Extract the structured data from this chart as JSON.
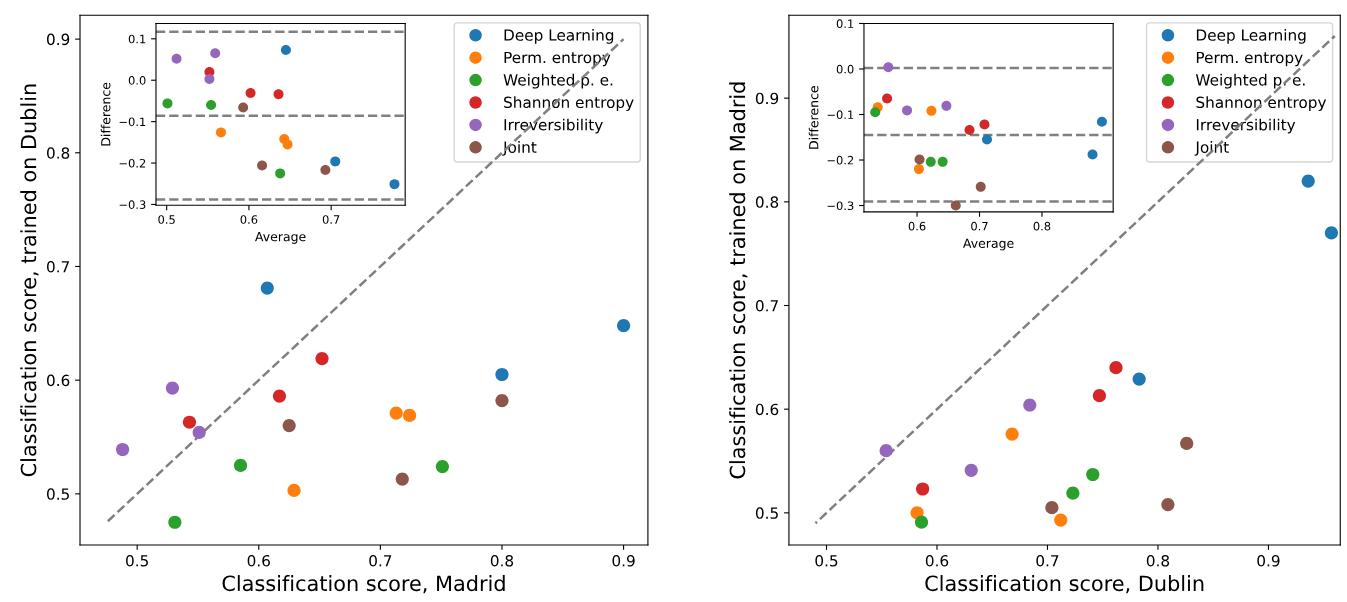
{
  "chart_data": [
    {
      "type": "scatter",
      "xlabel": "Classification score, Madrid",
      "ylabel": "Classification score, trained on Dublin",
      "xlim": [
        0.453,
        0.92
      ],
      "ylim": [
        0.455,
        0.921
      ],
      "xticks": [
        0.5,
        0.6,
        0.7,
        0.8,
        0.9
      ],
      "yticks": [
        0.5,
        0.6,
        0.7,
        0.8,
        0.9
      ],
      "grid": false,
      "legend": "top right",
      "marker": "circle",
      "series": [
        {
          "name": "Deep Learning",
          "color": "#1f77b4",
          "x": [
            0.607,
            0.8,
            0.9
          ],
          "values": [
            0.681,
            0.605,
            0.648
          ]
        },
        {
          "name": "Perm. entropy",
          "color": "#ff7f0e",
          "x": [
            0.713,
            0.724,
            0.629
          ],
          "values": [
            0.571,
            0.569,
            0.503
          ]
        },
        {
          "name": "Weighted p. e.",
          "color": "#2ca02c",
          "x": [
            0.585,
            0.751,
            0.531
          ],
          "values": [
            0.525,
            0.524,
            0.475
          ]
        },
        {
          "name": "Shannon entropy",
          "color": "#d62728",
          "x": [
            0.543,
            0.617,
            0.652
          ],
          "values": [
            0.563,
            0.586,
            0.619
          ]
        },
        {
          "name": "Irreversibility",
          "color": "#9467bd",
          "x": [
            0.529,
            0.488,
            0.551
          ],
          "values": [
            0.593,
            0.539,
            0.554
          ]
        },
        {
          "name": "Joint",
          "color": "#8c564b",
          "x": [
            0.625,
            0.8,
            0.718
          ],
          "values": [
            0.56,
            0.582,
            0.513
          ]
        },
        {
          "type": "line",
          "color": "#808080",
          "line_style": "dashed",
          "marker": "none",
          "x": [
            0.475,
            0.9
          ],
          "values": [
            0.475,
            0.9
          ]
        }
      ]
    },
    {
      "type": "scatter",
      "xlabel": "Average",
      "ylabel": "Difference",
      "xlim": [
        0.487,
        0.79
      ],
      "ylim": [
        -0.302,
        0.137
      ],
      "xticks": [
        0.5,
        0.6,
        0.7
      ],
      "yticks": [
        0.1,
        {
          "value": 0,
          "label": "0.0"
        },
        {
          "value": -0.1,
          "label": "−0.1"
        },
        {
          "value": -0.2,
          "label": "−0.2"
        },
        {
          "value": -0.3,
          "label": "−0.3"
        }
      ],
      "grid": false,
      "marker": "circle",
      "ref_lines": [
        {
          "axis": "y",
          "value": 0.117,
          "color": "#808080",
          "line_style": "dashed"
        },
        {
          "axis": "y",
          "value": -0.086,
          "color": "#808080",
          "line_style": "dashed"
        },
        {
          "axis": "y",
          "value": -0.288,
          "color": "#808080",
          "line_style": "dashed"
        }
      ],
      "series": [
        {
          "color": "#1f77b4",
          "x": [
            0.645,
            0.705,
            0.777
          ],
          "values": [
            0.073,
            -0.196,
            -0.251
          ]
        },
        {
          "color": "#ff7f0e",
          "x": [
            0.566,
            0.643,
            0.647
          ],
          "values": [
            -0.126,
            -0.142,
            -0.155
          ]
        },
        {
          "color": "#2ca02c",
          "x": [
            0.501,
            0.554,
            0.638
          ],
          "values": [
            -0.056,
            -0.06,
            -0.225
          ]
        },
        {
          "color": "#d62728",
          "x": [
            0.552,
            0.602,
            0.636
          ],
          "values": [
            0.02,
            -0.031,
            -0.034
          ]
        },
        {
          "color": "#9467bd",
          "x": [
            0.512,
            0.559,
            0.552
          ],
          "values": [
            0.052,
            0.065,
            0.003
          ]
        },
        {
          "color": "#8c564b",
          "x": [
            0.593,
            0.616,
            0.693
          ],
          "values": [
            -0.066,
            -0.206,
            -0.217
          ]
        }
      ]
    },
    {
      "type": "scatter",
      "xlabel": "Classification score, Dublin",
      "ylabel": "Classification score, trained on Madrid",
      "xlim": [
        0.466,
        0.965
      ],
      "ylim": [
        0.469,
        0.98
      ],
      "xticks": [
        0.5,
        0.6,
        0.7,
        0.8,
        0.9
      ],
      "yticks": [
        0.5,
        0.6,
        0.7,
        0.8,
        0.9
      ],
      "grid": false,
      "legend": "top right",
      "marker": "circle",
      "series": [
        {
          "name": "Deep Learning",
          "color": "#1f77b4",
          "x": [
            0.936,
            0.957,
            0.783
          ],
          "values": [
            0.82,
            0.77,
            0.629
          ]
        },
        {
          "name": "Perm. entropy",
          "color": "#ff7f0e",
          "x": [
            0.668,
            0.582,
            0.712
          ],
          "values": [
            0.576,
            0.5,
            0.493
          ]
        },
        {
          "name": "Weighted p. e.",
          "color": "#2ca02c",
          "x": [
            0.741,
            0.723,
            0.586
          ],
          "values": [
            0.537,
            0.519,
            0.491
          ]
        },
        {
          "name": "Shannon entropy",
          "color": "#d62728",
          "x": [
            0.762,
            0.747,
            0.587
          ],
          "values": [
            0.64,
            0.613,
            0.523
          ]
        },
        {
          "name": "Irreversibility",
          "color": "#9467bd",
          "x": [
            0.684,
            0.554,
            0.631
          ],
          "values": [
            0.604,
            0.56,
            0.541
          ]
        },
        {
          "name": "Joint",
          "color": "#8c564b",
          "x": [
            0.826,
            0.809,
            0.704
          ],
          "values": [
            0.567,
            0.508,
            0.505
          ]
        },
        {
          "type": "line",
          "color": "#808080",
          "line_style": "dashed",
          "marker": "none",
          "x": [
            0.49,
            0.96
          ],
          "values": [
            0.49,
            0.96
          ]
        }
      ]
    },
    {
      "type": "scatter",
      "xlabel": "Average",
      "ylabel": "Difference",
      "xlim": [
        0.515,
        0.914
      ],
      "ylim": [
        -0.314,
        0.1
      ],
      "xticks": [
        0.6,
        0.7,
        0.8
      ],
      "yticks": [
        0.1,
        {
          "value": 0,
          "label": "0.0"
        },
        {
          "value": -0.1,
          "label": "−0.1"
        },
        {
          "value": -0.2,
          "label": "−0.2"
        },
        {
          "value": -0.3,
          "label": "−0.3"
        }
      ],
      "grid": false,
      "marker": "circle",
      "ref_lines": [
        {
          "axis": "y",
          "value": 0.002,
          "color": "#808080",
          "line_style": "dashed"
        },
        {
          "axis": "y",
          "value": -0.145,
          "color": "#808080",
          "line_style": "dashed"
        },
        {
          "axis": "y",
          "value": -0.291,
          "color": "#808080",
          "line_style": "dashed"
        }
      ],
      "series": [
        {
          "color": "#1f77b4",
          "x": [
            0.712,
            0.881,
            0.896
          ],
          "values": [
            -0.155,
            -0.188,
            -0.116
          ]
        },
        {
          "color": "#ff7f0e",
          "x": [
            0.537,
            0.623,
            0.603
          ],
          "values": [
            -0.084,
            -0.092,
            -0.22
          ]
        },
        {
          "color": "#2ca02c",
          "x": [
            0.533,
            0.622,
            0.641
          ],
          "values": [
            -0.095,
            -0.204,
            -0.204
          ]
        },
        {
          "color": "#d62728",
          "x": [
            0.552,
            0.684,
            0.708
          ],
          "values": [
            -0.065,
            -0.134,
            -0.122
          ]
        },
        {
          "color": "#9467bd",
          "x": [
            0.554,
            0.584,
            0.647
          ],
          "values": [
            0.004,
            -0.091,
            -0.081
          ]
        },
        {
          "color": "#8c564b",
          "x": [
            0.604,
            0.702,
            0.662
          ],
          "values": [
            -0.199,
            -0.259,
            -0.3
          ]
        }
      ]
    }
  ]
}
